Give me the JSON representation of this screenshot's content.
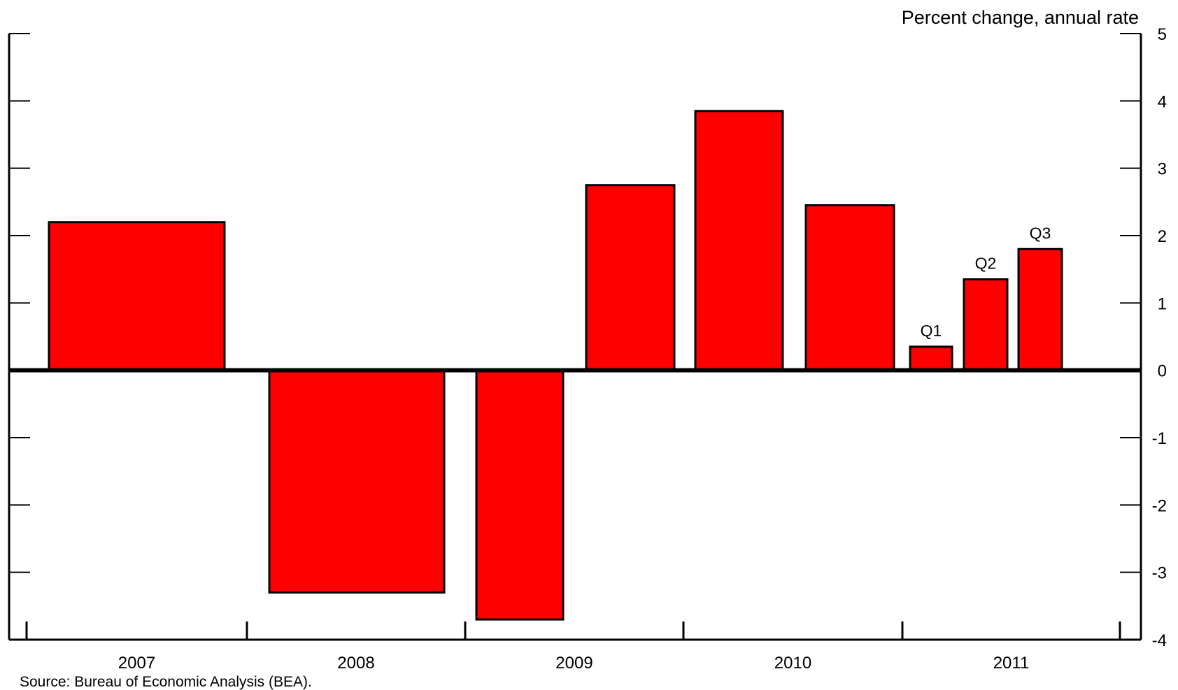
{
  "chart_data": {
    "type": "bar",
    "ylabel": "Percent change, annual rate",
    "ylim": [
      -4,
      5
    ],
    "yticks": [
      5,
      4,
      3,
      2,
      1,
      0,
      -1,
      -2,
      -3,
      -4
    ],
    "years": [
      "2007",
      "2008",
      "2009",
      "2010",
      "2011"
    ],
    "bars": [
      {
        "period": "2007",
        "value": 2.2,
        "label": ""
      },
      {
        "period": "2008",
        "value": -3.3,
        "label": ""
      },
      {
        "period": "2009 H1",
        "value": -3.7,
        "label": ""
      },
      {
        "period": "2009 H2",
        "value": 2.75,
        "label": ""
      },
      {
        "period": "2010 H1",
        "value": 3.85,
        "label": ""
      },
      {
        "period": "2010 H2",
        "value": 2.45,
        "label": ""
      },
      {
        "period": "2011 Q1",
        "value": 0.35,
        "label": "Q1"
      },
      {
        "period": "2011 Q2",
        "value": 1.35,
        "label": "Q2"
      },
      {
        "period": "2011 Q3",
        "value": 1.8,
        "label": "Q3"
      }
    ],
    "bar_color": "#ff0000",
    "source": "Source:  Bureau of Economic Analysis (BEA)."
  }
}
